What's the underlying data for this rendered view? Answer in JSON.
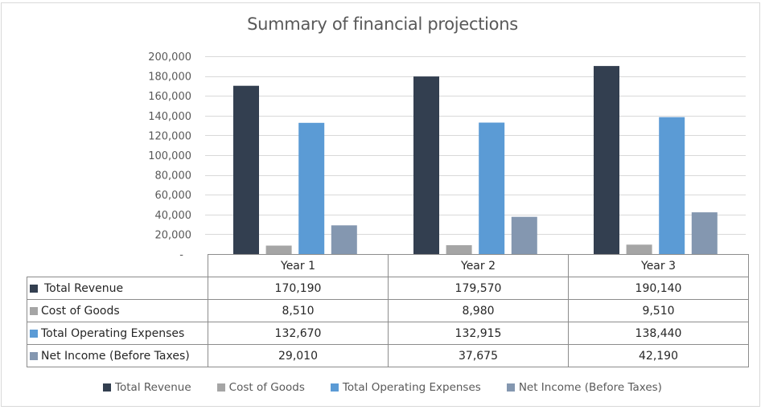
{
  "chart_data": {
    "type": "bar",
    "title": "Summary of financial projections",
    "xlabel": "",
    "ylabel": "",
    "ylim": [
      0,
      200000
    ],
    "yticks": [
      0,
      20000,
      40000,
      60000,
      80000,
      100000,
      120000,
      140000,
      160000,
      180000,
      200000
    ],
    "ytick_labels": [
      "-",
      "20,000",
      "40,000",
      "60,000",
      "80,000",
      "100,000",
      "120,000",
      "140,000",
      "160,000",
      "180,000",
      "200,000"
    ],
    "grid": true,
    "legend_position": "bottom",
    "categories": [
      "Year 1",
      "Year 2",
      "Year 3"
    ],
    "series": [
      {
        "name": "Total Revenue",
        "color": "#333f50",
        "values": [
          170190,
          179570,
          190140
        ],
        "labels": [
          "170,190",
          "179,570",
          "190,140"
        ]
      },
      {
        "name": "Cost of Goods",
        "color": "#a5a5a5",
        "values": [
          8510,
          8980,
          9510
        ],
        "labels": [
          "8,510",
          "8,980",
          "9,510"
        ]
      },
      {
        "name": "Total Operating Expenses",
        "color": "#5b9bd5",
        "values": [
          132670,
          132915,
          138440
        ],
        "labels": [
          "132,670",
          "132,915",
          "138,440"
        ]
      },
      {
        "name": "Net Income (Before Taxes)",
        "color": "#8497b0",
        "values": [
          29010,
          37675,
          42190
        ],
        "labels": [
          "29,010",
          "37,675",
          "42,190"
        ]
      }
    ]
  }
}
